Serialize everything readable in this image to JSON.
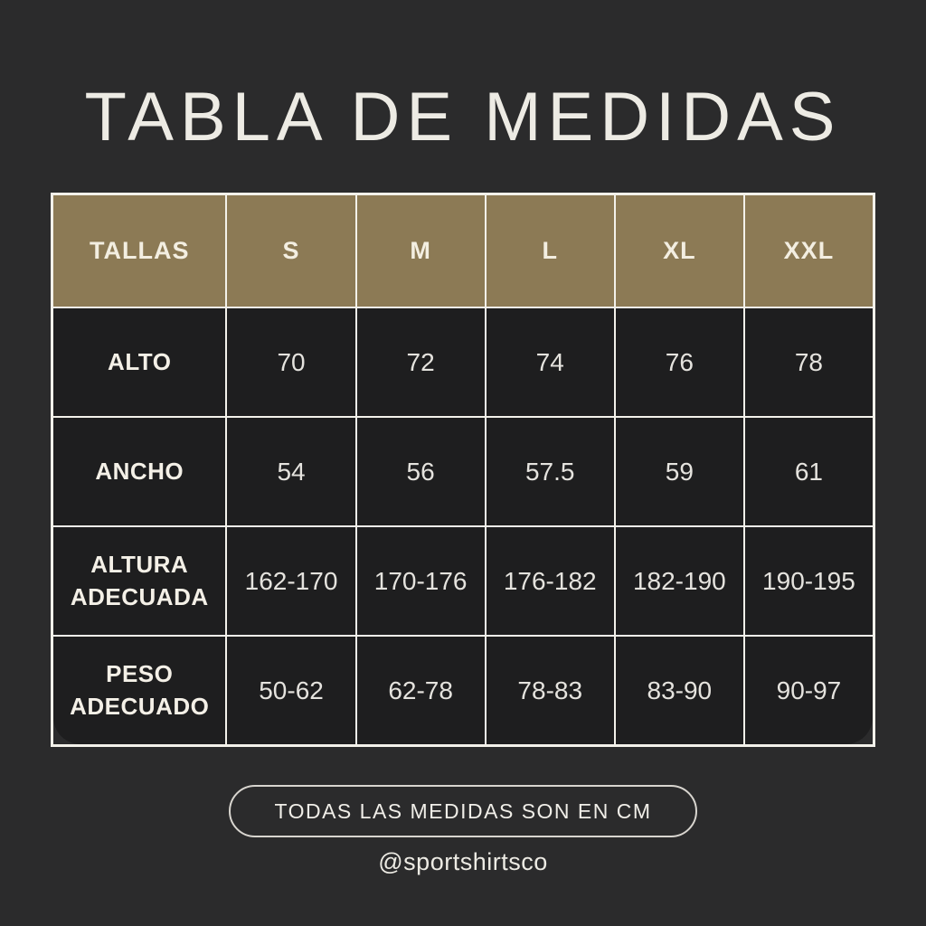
{
  "title": "TABLA DE MEDIDAS",
  "chart_data": {
    "type": "table",
    "title": "TABLA DE MEDIDAS",
    "columns": [
      "TALLAS",
      "S",
      "M",
      "L",
      "XL",
      "XXL"
    ],
    "rows": [
      [
        "ALTO",
        "70",
        "72",
        "74",
        "76",
        "78"
      ],
      [
        "ANCHO",
        "54",
        "56",
        "57.5",
        "59",
        "61"
      ],
      [
        "ALTURA ADECUADA",
        "162-170",
        "170-176",
        "176-182",
        "182-190",
        "190-195"
      ],
      [
        "PESO ADECUADO",
        "50-62",
        "62-78",
        "78-83",
        "83-90",
        "90-97"
      ]
    ],
    "units_note": "TODAS LAS MEDIDAS SON EN CM"
  },
  "footer": {
    "badge_label": "TODAS LAS MEDIDAS SON EN CM",
    "handle": "@sportshirtsco"
  },
  "colors": {
    "background": "#2b2b2c",
    "cell_background": "#1e1e1f",
    "header_background": "#8c7a55",
    "grid_line": "#f3f1ea",
    "title_text": "#edebe4",
    "label_text": "#f4f0e7",
    "value_text": "#e5e3de"
  }
}
